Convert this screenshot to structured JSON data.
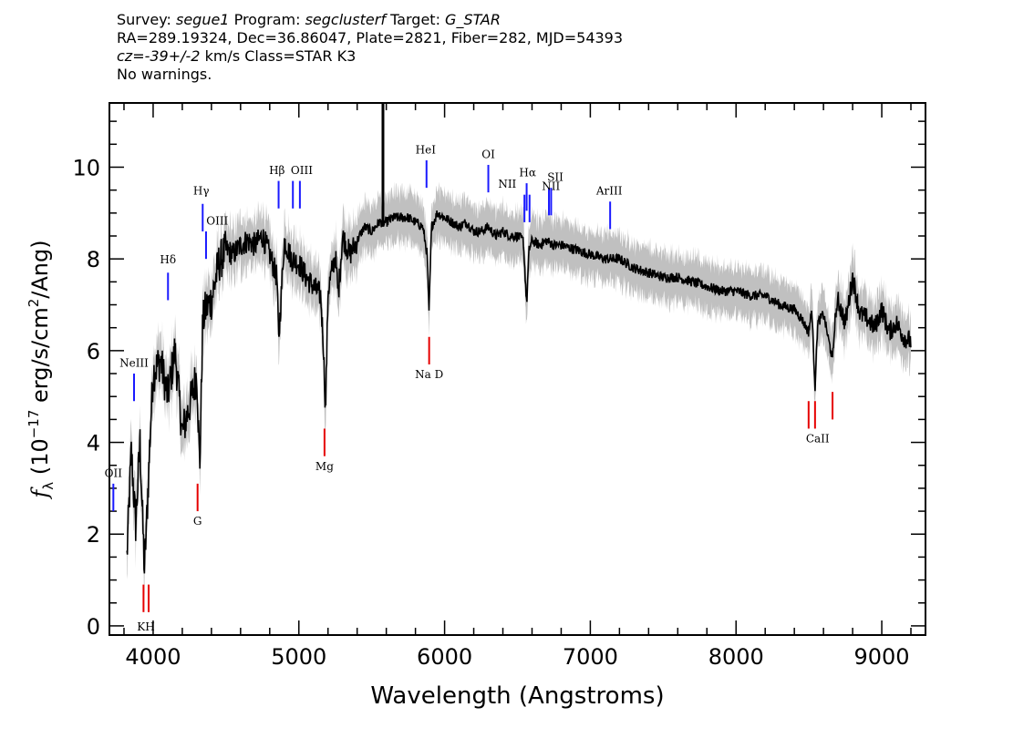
{
  "header": {
    "survey_label": "Survey:",
    "survey_value": "segue1",
    "program_label": "Program:",
    "program_value": "segclusterf",
    "target_label": "Target:",
    "target_value": "G_STAR",
    "line2": "RA=289.19324, Dec=36.86047, Plate=2821, Fiber=282, MJD=54393",
    "cz_value": "cz=-39+/-2",
    "cz_rest": " km/s Class=STAR K3",
    "line4": "No warnings."
  },
  "chart_data": {
    "type": "line",
    "xlabel": "Wavelength (Angstroms)",
    "ylabel": "f_λ (10^-17 erg/s/cm^2/Ang)",
    "ylabel_parts": {
      "f": "f",
      "lambda": "λ",
      "pre": " (10",
      "exp1": "−17",
      "mid": " erg/s/cm",
      "exp2": "2",
      "post": "/Ang)"
    },
    "xlim": [
      3700,
      9300
    ],
    "ylim": [
      -0.2,
      11.4
    ],
    "xticks": [
      4000,
      5000,
      6000,
      7000,
      8000,
      9000
    ],
    "yticks": [
      0,
      2,
      4,
      6,
      8,
      10
    ],
    "colors": {
      "spectrum": "#000000",
      "error": "#b0b0b0",
      "emission": "#1a1aff",
      "absorption": "#e60000"
    },
    "spectrum": {
      "x": [
        3820,
        3850,
        3880,
        3910,
        3940,
        3960,
        3980,
        4000,
        4050,
        4100,
        4150,
        4200,
        4250,
        4300,
        4320,
        4340,
        4360,
        4400,
        4450,
        4500,
        4550,
        4600,
        4650,
        4700,
        4750,
        4800,
        4850,
        4861,
        4900,
        4950,
        5000,
        5050,
        5100,
        5150,
        5170,
        5183,
        5200,
        5250,
        5270,
        5300,
        5350,
        5400,
        5450,
        5500,
        5550,
        5600,
        5650,
        5700,
        5750,
        5800,
        5850,
        5880,
        5893,
        5910,
        5950,
        6000,
        6050,
        6100,
        6150,
        6200,
        6250,
        6300,
        6350,
        6400,
        6450,
        6500,
        6540,
        6563,
        6580,
        6600,
        6650,
        6700,
        6750,
        6800,
        6900,
        7000,
        7100,
        7200,
        7300,
        7400,
        7500,
        7600,
        7700,
        7800,
        7900,
        8000,
        8100,
        8200,
        8300,
        8400,
        8450,
        8498,
        8520,
        8542,
        8560,
        8600,
        8662,
        8680,
        8700,
        8750,
        8800,
        8850,
        8900,
        8950,
        9000,
        9050,
        9100,
        9150,
        9200
      ],
      "y": [
        1.5,
        3.8,
        2.2,
        4.0,
        1.2,
        2.6,
        4.2,
        5.5,
        5.8,
        5.0,
        6.0,
        4.2,
        4.8,
        5.5,
        3.4,
        6.6,
        6.9,
        7.1,
        7.9,
        8.2,
        8.1,
        8.3,
        8.4,
        8.3,
        8.5,
        8.1,
        7.6,
        6.2,
        8.4,
        8.0,
        7.9,
        7.6,
        7.4,
        7.2,
        6.0,
        4.6,
        7.3,
        8.1,
        7.2,
        8.5,
        8.1,
        8.4,
        8.7,
        8.6,
        8.8,
        8.8,
        8.9,
        8.9,
        8.9,
        8.8,
        8.7,
        8.1,
        6.8,
        8.7,
        9.0,
        8.9,
        8.8,
        8.7,
        8.8,
        8.6,
        8.6,
        8.7,
        8.5,
        8.6,
        8.5,
        8.5,
        8.4,
        7.0,
        8.2,
        8.4,
        8.3,
        8.4,
        8.3,
        8.3,
        8.2,
        8.1,
        8.0,
        8.0,
        7.8,
        7.7,
        7.6,
        7.6,
        7.5,
        7.4,
        7.3,
        7.3,
        7.2,
        7.2,
        7.0,
        6.9,
        6.7,
        6.4,
        6.9,
        5.2,
        6.6,
        6.8,
        5.8,
        6.7,
        7.1,
        6.6,
        7.6,
        6.8,
        6.7,
        6.5,
        6.9,
        6.4,
        6.6,
        6.3,
        6.2
      ]
    },
    "sky_spike": {
      "x": 5577,
      "y_top": 11.4,
      "y_bottom": 8.7
    },
    "emission_lines": [
      {
        "name": "OII",
        "x": 3727,
        "y0": 2.5,
        "y1": 3.1,
        "label_y": 3.25
      },
      {
        "name": "NeIII",
        "x": 3869,
        "y0": 4.9,
        "y1": 5.5,
        "label_y": 5.65
      },
      {
        "name": "Hδ",
        "x": 4102,
        "y0": 7.1,
        "y1": 7.7,
        "label_y": 7.9
      },
      {
        "name": "Hγ",
        "x": 4340,
        "y0": 8.6,
        "y1": 9.2,
        "label_y": 9.35
      },
      {
        "name": "OIII",
        "x": 4363,
        "y0": 8.0,
        "y1": 8.6,
        "label_y": 8.75
      },
      {
        "name": "Hβ",
        "x": 4861,
        "y0": 9.1,
        "y1": 9.7,
        "label_y": 9.85
      },
      {
        "name": "OIII",
        "x": 4959,
        "y0": 9.1,
        "y1": 9.7,
        "label_y": 9.85
      },
      {
        "name": "OIII",
        "x": 5007,
        "y0": 9.1,
        "y1": 9.7,
        "label_y": 9.85
      },
      {
        "name": "HeI",
        "x": 5876,
        "y0": 9.55,
        "y1": 10.15,
        "label_y": 10.3
      },
      {
        "name": "OI",
        "x": 6300,
        "y0": 9.45,
        "y1": 10.05,
        "label_y": 10.2
      },
      {
        "name": "NII",
        "x": 6548,
        "y0": 8.8,
        "y1": 9.4,
        "label_y": 9.55
      },
      {
        "name": "Hα",
        "x": 6563,
        "y0": 9.05,
        "y1": 9.65,
        "label_y": 9.8
      },
      {
        "name": "NII",
        "x": 6583,
        "y0": 8.8,
        "y1": 9.4,
        "label_y": 9.55
      },
      {
        "name": "SII",
        "x": 6716,
        "y0": 8.95,
        "y1": 9.55,
        "label_y": 9.7
      },
      {
        "name": "SII",
        "x": 6731,
        "y0": 8.95,
        "y1": 9.55,
        "label_y": 9.7
      },
      {
        "name": "ArIII",
        "x": 7136,
        "y0": 8.65,
        "y1": 9.25,
        "label_y": 9.4
      }
    ],
    "absorption_lines": [
      {
        "name": "K",
        "x": 3934,
        "y0": 0.3,
        "y1": 0.9,
        "label_y": -0.1
      },
      {
        "name": "H",
        "x": 3969,
        "y0": 0.3,
        "y1": 0.9,
        "label_y": -0.1
      },
      {
        "name": "G",
        "x": 4305,
        "y0": 2.5,
        "y1": 3.1,
        "label_y": 2.25
      },
      {
        "name": "Mg",
        "x": 5176,
        "y0": 3.7,
        "y1": 4.3,
        "label_y": 3.45
      },
      {
        "name": "Na D",
        "x": 5894,
        "y0": 5.7,
        "y1": 6.3,
        "label_y": 5.45
      },
      {
        "name": "CaII",
        "x": 8498,
        "y0": 4.3,
        "y1": 4.9,
        "label_y": 4.05
      },
      {
        "name": "CaII",
        "x": 8542,
        "y0": 4.3,
        "y1": 4.9,
        "label_y": 4.05
      },
      {
        "name": "CaII",
        "x": 8662,
        "y0": 4.5,
        "y1": 5.1,
        "label_y": 4.05
      }
    ],
    "line_label_text": {
      "OII": "OII",
      "NeIII": "NeIII",
      "Hd": "Hδ",
      "Hg": "Hγ",
      "OIII": "OIII",
      "Hb": "Hβ",
      "HeI": "HeI",
      "OI": "OI",
      "NII": "NII",
      "Ha": "Hα",
      "SII": "SII",
      "ArIII": "ArIII",
      "KH": "KH",
      "G": "G",
      "Mg": "Mg",
      "NaD": "Na D",
      "CaII": "CaII"
    }
  }
}
